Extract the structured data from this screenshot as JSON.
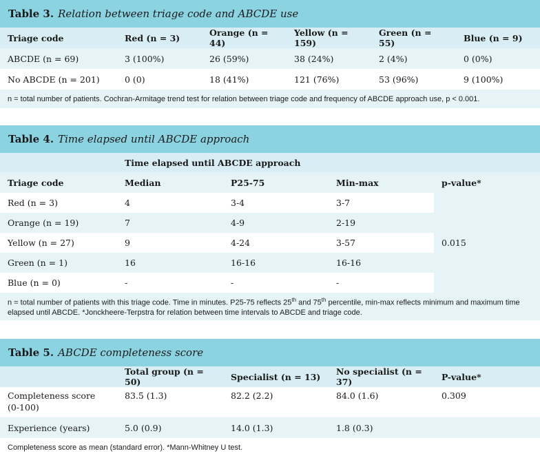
{
  "table3": {
    "label": "Table 3.",
    "caption": "Relation between triage code and ABCDE use",
    "headers": [
      "Triage code",
      "Red (n = 3)",
      "Orange (n = 44)",
      "Yellow (n = 159)",
      "Green (n = 55)",
      "Blue (n = 9)"
    ],
    "rows": [
      [
        "ABCDE (n = 69)",
        "3 (100%)",
        "26 (59%)",
        "38 (24%)",
        "2 (4%)",
        "0 (0%)"
      ],
      [
        "No ABCDE (n = 201)",
        "0 (0)",
        "18 (41%)",
        "121 (76%)",
        "53 (96%)",
        "9 (100%)"
      ]
    ],
    "note": "n = total number of patients. Cochran-Armitage trend test for relation between triage code and frequency of ABCDE approach use, p < 0.001."
  },
  "table4": {
    "label": "Table 4.",
    "caption": "Time elapsed until ABCDE approach",
    "group_header": "Time elapsed until ABCDE approach",
    "headers": [
      "Triage code",
      "Median",
      "P25-75",
      "Min-max",
      "p-value*"
    ],
    "rows": [
      [
        "Red (n = 3)",
        "4",
        "3-4",
        "3-7"
      ],
      [
        "Orange (n = 19)",
        "7",
        "4-9",
        "2-19"
      ],
      [
        "Yellow (n = 27)",
        "9",
        "4-24",
        "3-57"
      ],
      [
        "Green (n = 1)",
        "16",
        "16-16",
        "16-16"
      ],
      [
        "Blue (n = 0)",
        "-",
        "-",
        "-"
      ]
    ],
    "p_value": "0.015",
    "note_a": "n = total number of patients with this triage code. Time in minutes. P25-75 reflects 25",
    "note_sup1": "th",
    "note_b": " and 75",
    "note_sup2": "th",
    "note_c": " percentile, min-max reflects minimum and maximum time elapsed until ABCDE. *Jonckheere-Terpstra for relation between time intervals to ABCDE and triage code."
  },
  "table5": {
    "label": "Table 5.",
    "caption": "ABCDE completeness score",
    "headers": [
      "",
      "Total group (n = 50)",
      "Specialist (n = 13)",
      "No specialist (n = 37)",
      "P-value*"
    ],
    "rows": [
      [
        "Completeness score (0-100)",
        "83.5 (1.3)",
        "82.2 (2.2)",
        "84.0 (1.6)",
        "0.309"
      ],
      [
        "Experience (years)",
        "5.0 (0.9)",
        "14.0 (1.3)",
        "1.8 (0.3)",
        ""
      ]
    ],
    "note": "Completeness score as mean (standard error). *Mann-Whitney U test."
  }
}
